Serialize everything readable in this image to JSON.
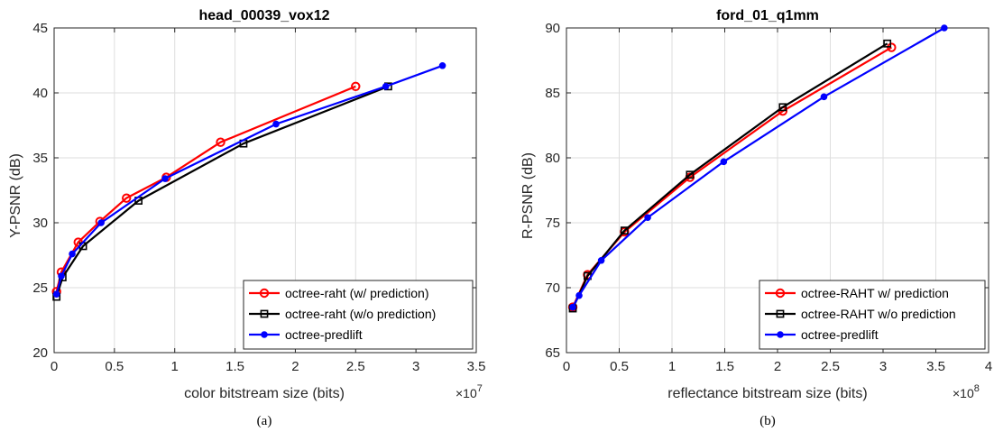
{
  "chart_data": [
    {
      "type": "line",
      "title": "head_00039_vox12",
      "xlabel": "color bitstream size (bits)",
      "ylabel": "Y-PSNR (dB)",
      "x_multiplier": "7",
      "caption": "(a)",
      "xlim": [
        0,
        3.5
      ],
      "ylim": [
        20,
        45
      ],
      "xticks": [
        0,
        0.5,
        1,
        1.5,
        2,
        2.5,
        3,
        3.5
      ],
      "xtick_labels": [
        "0",
        "0.5",
        "1",
        "1.5",
        "2",
        "2.5",
        "3",
        "3.5"
      ],
      "yticks": [
        20,
        25,
        30,
        35,
        40,
        45
      ],
      "ytick_labels": [
        "20",
        "25",
        "30",
        "35",
        "40",
        "45"
      ],
      "grid": true,
      "legend_position": "bottom-right",
      "series": [
        {
          "name": "octree-raht (w/ prediction)",
          "color": "#ff0000",
          "marker": "circle-open",
          "x": [
            0.02,
            0.06,
            0.2,
            0.38,
            0.6,
            0.93,
            1.38,
            2.5
          ],
          "y": [
            24.7,
            26.2,
            28.5,
            30.1,
            31.9,
            33.5,
            36.2,
            40.5
          ]
        },
        {
          "name": "octree-raht (w/o prediction)",
          "color": "#000000",
          "marker": "square-open",
          "x": [
            0.02,
            0.07,
            0.24,
            0.7,
            1.57,
            2.77
          ],
          "y": [
            24.3,
            25.8,
            28.2,
            31.7,
            36.1,
            40.5
          ]
        },
        {
          "name": "octree-predlift",
          "color": "#0000ff",
          "marker": "dot",
          "x": [
            0.02,
            0.06,
            0.15,
            0.39,
            0.92,
            1.84,
            2.75,
            3.22
          ],
          "y": [
            24.5,
            25.9,
            27.6,
            30.0,
            33.4,
            37.6,
            40.5,
            42.1
          ]
        }
      ]
    },
    {
      "type": "line",
      "title": "ford_01_q1mm",
      "xlabel": "reflectance bitstream size (bits)",
      "ylabel": "R-PSNR (dB)",
      "x_multiplier": "8",
      "caption": "(b)",
      "xlim": [
        0,
        4
      ],
      "ylim": [
        65,
        90
      ],
      "xticks": [
        0,
        0.5,
        1,
        1.5,
        2,
        2.5,
        3,
        3.5,
        4
      ],
      "xtick_labels": [
        "0",
        "0.5",
        "1",
        "1.5",
        "2",
        "2.5",
        "3",
        "3.5",
        "4"
      ],
      "yticks": [
        65,
        70,
        75,
        80,
        85,
        90
      ],
      "ytick_labels": [
        "65",
        "70",
        "75",
        "80",
        "85",
        "90"
      ],
      "grid": true,
      "legend_position": "bottom-right",
      "series": [
        {
          "name": "octree-RAHT w/ prediction",
          "color": "#ff0000",
          "marker": "circle-open",
          "x": [
            0.06,
            0.2,
            0.55,
            1.17,
            2.05,
            3.08
          ],
          "y": [
            68.5,
            71.0,
            74.3,
            78.5,
            83.6,
            88.5
          ]
        },
        {
          "name": "octree-RAHT w/o prediction",
          "color": "#000000",
          "marker": "square-open",
          "x": [
            0.06,
            0.2,
            0.55,
            1.17,
            2.05,
            3.04
          ],
          "y": [
            68.4,
            70.9,
            74.4,
            78.7,
            83.9,
            88.8
          ]
        },
        {
          "name": "octree-predlift",
          "color": "#0000ff",
          "marker": "dot",
          "x": [
            0.06,
            0.12,
            0.33,
            0.77,
            1.49,
            2.44,
            3.58
          ],
          "y": [
            68.5,
            69.4,
            72.1,
            75.4,
            79.7,
            84.7,
            90.0
          ]
        }
      ]
    }
  ]
}
